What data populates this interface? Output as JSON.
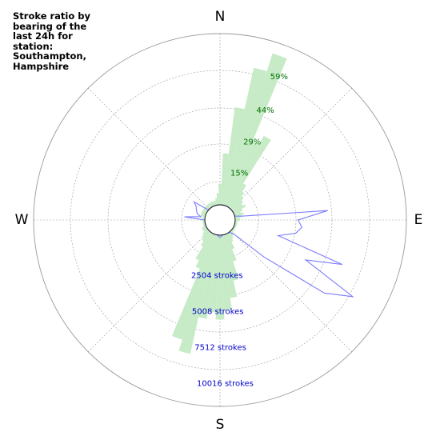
{
  "chart_data": {
    "type": "polar-rose",
    "title": "Stroke ratio by bearing of the last 24h for station: Southampton, Hampshire",
    "compass": {
      "north": "N",
      "east": "E",
      "south": "S",
      "west": "W"
    },
    "ratio_ticks": [
      "15%",
      "29%",
      "44%",
      "59%"
    ],
    "ratio_max_pct": 73,
    "stroke_ticks": [
      "2504 strokes",
      "5008 strokes",
      "7512 strokes",
      "10016 strokes"
    ],
    "strokes_max": 12520,
    "bearing_step_deg": 5,
    "series": [
      {
        "name": "Stroke ratio",
        "unit": "percent",
        "color": "#c6ebc6",
        "bins": [
          {
            "bearing": 0,
            "value": 9
          },
          {
            "bearing": 5,
            "value": 22
          },
          {
            "bearing": 10,
            "value": 42
          },
          {
            "bearing": 15,
            "value": 60
          },
          {
            "bearing": 20,
            "value": 68
          },
          {
            "bearing": 25,
            "value": 30
          },
          {
            "bearing": 30,
            "value": 34
          },
          {
            "bearing": 35,
            "value": 12
          },
          {
            "bearing": 40,
            "value": 9
          },
          {
            "bearing": 45,
            "value": 7
          },
          {
            "bearing": 50,
            "value": 6
          },
          {
            "bearing": 55,
            "value": 5
          },
          {
            "bearing": 60,
            "value": 6
          },
          {
            "bearing": 65,
            "value": 4
          },
          {
            "bearing": 70,
            "value": 3
          },
          {
            "bearing": 75,
            "value": 4
          },
          {
            "bearing": 80,
            "value": 3
          },
          {
            "bearing": 85,
            "value": 2
          },
          {
            "bearing": 90,
            "value": 2
          },
          {
            "bearing": 95,
            "value": 1
          },
          {
            "bearing": 100,
            "value": 1
          },
          {
            "bearing": 105,
            "value": 1
          },
          {
            "bearing": 110,
            "value": 1
          },
          {
            "bearing": 115,
            "value": 1
          },
          {
            "bearing": 120,
            "value": 1
          },
          {
            "bearing": 125,
            "value": 1
          },
          {
            "bearing": 130,
            "value": 1
          },
          {
            "bearing": 135,
            "value": 2
          },
          {
            "bearing": 140,
            "value": 2
          },
          {
            "bearing": 145,
            "value": 3
          },
          {
            "bearing": 150,
            "value": 4
          },
          {
            "bearing": 155,
            "value": 7
          },
          {
            "bearing": 160,
            "value": 12
          },
          {
            "bearing": 165,
            "value": 20
          },
          {
            "bearing": 170,
            "value": 27
          },
          {
            "bearing": 175,
            "value": 32
          },
          {
            "bearing": 180,
            "value": 36
          },
          {
            "bearing": 185,
            "value": 33
          },
          {
            "bearing": 190,
            "value": 36
          },
          {
            "bearing": 195,
            "value": 52
          },
          {
            "bearing": 200,
            "value": 47
          },
          {
            "bearing": 205,
            "value": 16
          },
          {
            "bearing": 210,
            "value": 13
          },
          {
            "bearing": 215,
            "value": 7
          },
          {
            "bearing": 220,
            "value": 5
          },
          {
            "bearing": 225,
            "value": 4
          },
          {
            "bearing": 230,
            "value": 3
          },
          {
            "bearing": 235,
            "value": 2
          },
          {
            "bearing": 240,
            "value": 2
          },
          {
            "bearing": 245,
            "value": 2
          },
          {
            "bearing": 250,
            "value": 1
          },
          {
            "bearing": 255,
            "value": 1
          },
          {
            "bearing": 260,
            "value": 1
          },
          {
            "bearing": 265,
            "value": 1
          },
          {
            "bearing": 270,
            "value": 1
          },
          {
            "bearing": 275,
            "value": 1
          },
          {
            "bearing": 280,
            "value": 1
          },
          {
            "bearing": 285,
            "value": 2
          },
          {
            "bearing": 290,
            "value": 2
          },
          {
            "bearing": 295,
            "value": 2
          },
          {
            "bearing": 300,
            "value": 2
          },
          {
            "bearing": 305,
            "value": 2
          },
          {
            "bearing": 310,
            "value": 2
          },
          {
            "bearing": 315,
            "value": 2
          },
          {
            "bearing": 320,
            "value": 2
          },
          {
            "bearing": 325,
            "value": 2
          },
          {
            "bearing": 330,
            "value": 2
          },
          {
            "bearing": 335,
            "value": 2
          },
          {
            "bearing": 340,
            "value": 2
          },
          {
            "bearing": 345,
            "value": 2
          },
          {
            "bearing": 350,
            "value": 3
          },
          {
            "bearing": 355,
            "value": 5
          }
        ]
      },
      {
        "name": "Strokes",
        "unit": "strokes",
        "color": "#7b7bff",
        "bins": [
          {
            "bearing": 0,
            "value": 0
          },
          {
            "bearing": 5,
            "value": 0
          },
          {
            "bearing": 10,
            "value": 0
          },
          {
            "bearing": 15,
            "value": 0
          },
          {
            "bearing": 20,
            "value": 0
          },
          {
            "bearing": 25,
            "value": 0
          },
          {
            "bearing": 30,
            "value": 0
          },
          {
            "bearing": 35,
            "value": 0
          },
          {
            "bearing": 40,
            "value": 0
          },
          {
            "bearing": 45,
            "value": 0
          },
          {
            "bearing": 50,
            "value": 0
          },
          {
            "bearing": 55,
            "value": 0
          },
          {
            "bearing": 60,
            "value": 0
          },
          {
            "bearing": 65,
            "value": 0
          },
          {
            "bearing": 70,
            "value": 0
          },
          {
            "bearing": 75,
            "value": 0
          },
          {
            "bearing": 80,
            "value": 500
          },
          {
            "bearing": 85,
            "value": 6800
          },
          {
            "bearing": 90,
            "value": 4600
          },
          {
            "bearing": 95,
            "value": 4900
          },
          {
            "bearing": 100,
            "value": 4500
          },
          {
            "bearing": 105,
            "value": 3300
          },
          {
            "bearing": 110,
            "value": 8400
          },
          {
            "bearing": 115,
            "value": 5800
          },
          {
            "bearing": 120,
            "value": 10100
          },
          {
            "bearing": 125,
            "value": 8200
          },
          {
            "bearing": 130,
            "value": 3100
          },
          {
            "bearing": 135,
            "value": 400
          },
          {
            "bearing": 140,
            "value": 100
          },
          {
            "bearing": 145,
            "value": 0
          },
          {
            "bearing": 150,
            "value": 0
          },
          {
            "bearing": 155,
            "value": 0
          },
          {
            "bearing": 160,
            "value": 0
          },
          {
            "bearing": 165,
            "value": 0
          },
          {
            "bearing": 170,
            "value": 0
          },
          {
            "bearing": 175,
            "value": 100
          },
          {
            "bearing": 180,
            "value": 150
          },
          {
            "bearing": 185,
            "value": 100
          },
          {
            "bearing": 190,
            "value": 0
          },
          {
            "bearing": 195,
            "value": 0
          },
          {
            "bearing": 200,
            "value": 0
          },
          {
            "bearing": 205,
            "value": 0
          },
          {
            "bearing": 210,
            "value": 0
          },
          {
            "bearing": 215,
            "value": 0
          },
          {
            "bearing": 220,
            "value": 0
          },
          {
            "bearing": 225,
            "value": 0
          },
          {
            "bearing": 230,
            "value": 0
          },
          {
            "bearing": 235,
            "value": 0
          },
          {
            "bearing": 240,
            "value": 0
          },
          {
            "bearing": 245,
            "value": 0
          },
          {
            "bearing": 250,
            "value": 0
          },
          {
            "bearing": 255,
            "value": 0
          },
          {
            "bearing": 260,
            "value": 0
          },
          {
            "bearing": 265,
            "value": 0
          },
          {
            "bearing": 270,
            "value": 0
          },
          {
            "bearing": 275,
            "value": 1500
          },
          {
            "bearing": 280,
            "value": 300
          },
          {
            "bearing": 285,
            "value": 600
          },
          {
            "bearing": 290,
            "value": 700
          },
          {
            "bearing": 295,
            "value": 800
          },
          {
            "bearing": 300,
            "value": 900
          },
          {
            "bearing": 305,
            "value": 1200
          },
          {
            "bearing": 310,
            "value": 100
          },
          {
            "bearing": 315,
            "value": 0
          },
          {
            "bearing": 320,
            "value": 0
          },
          {
            "bearing": 325,
            "value": 0
          },
          {
            "bearing": 330,
            "value": 0
          },
          {
            "bearing": 335,
            "value": 0
          },
          {
            "bearing": 340,
            "value": 0
          },
          {
            "bearing": 345,
            "value": 0
          },
          {
            "bearing": 350,
            "value": 0
          },
          {
            "bearing": 355,
            "value": 0
          }
        ]
      }
    ],
    "grid": true,
    "colors": {
      "ratio_label": "#007000",
      "stroke_label": "#0000cc",
      "grid": "#999999",
      "outline": "#000000"
    }
  }
}
